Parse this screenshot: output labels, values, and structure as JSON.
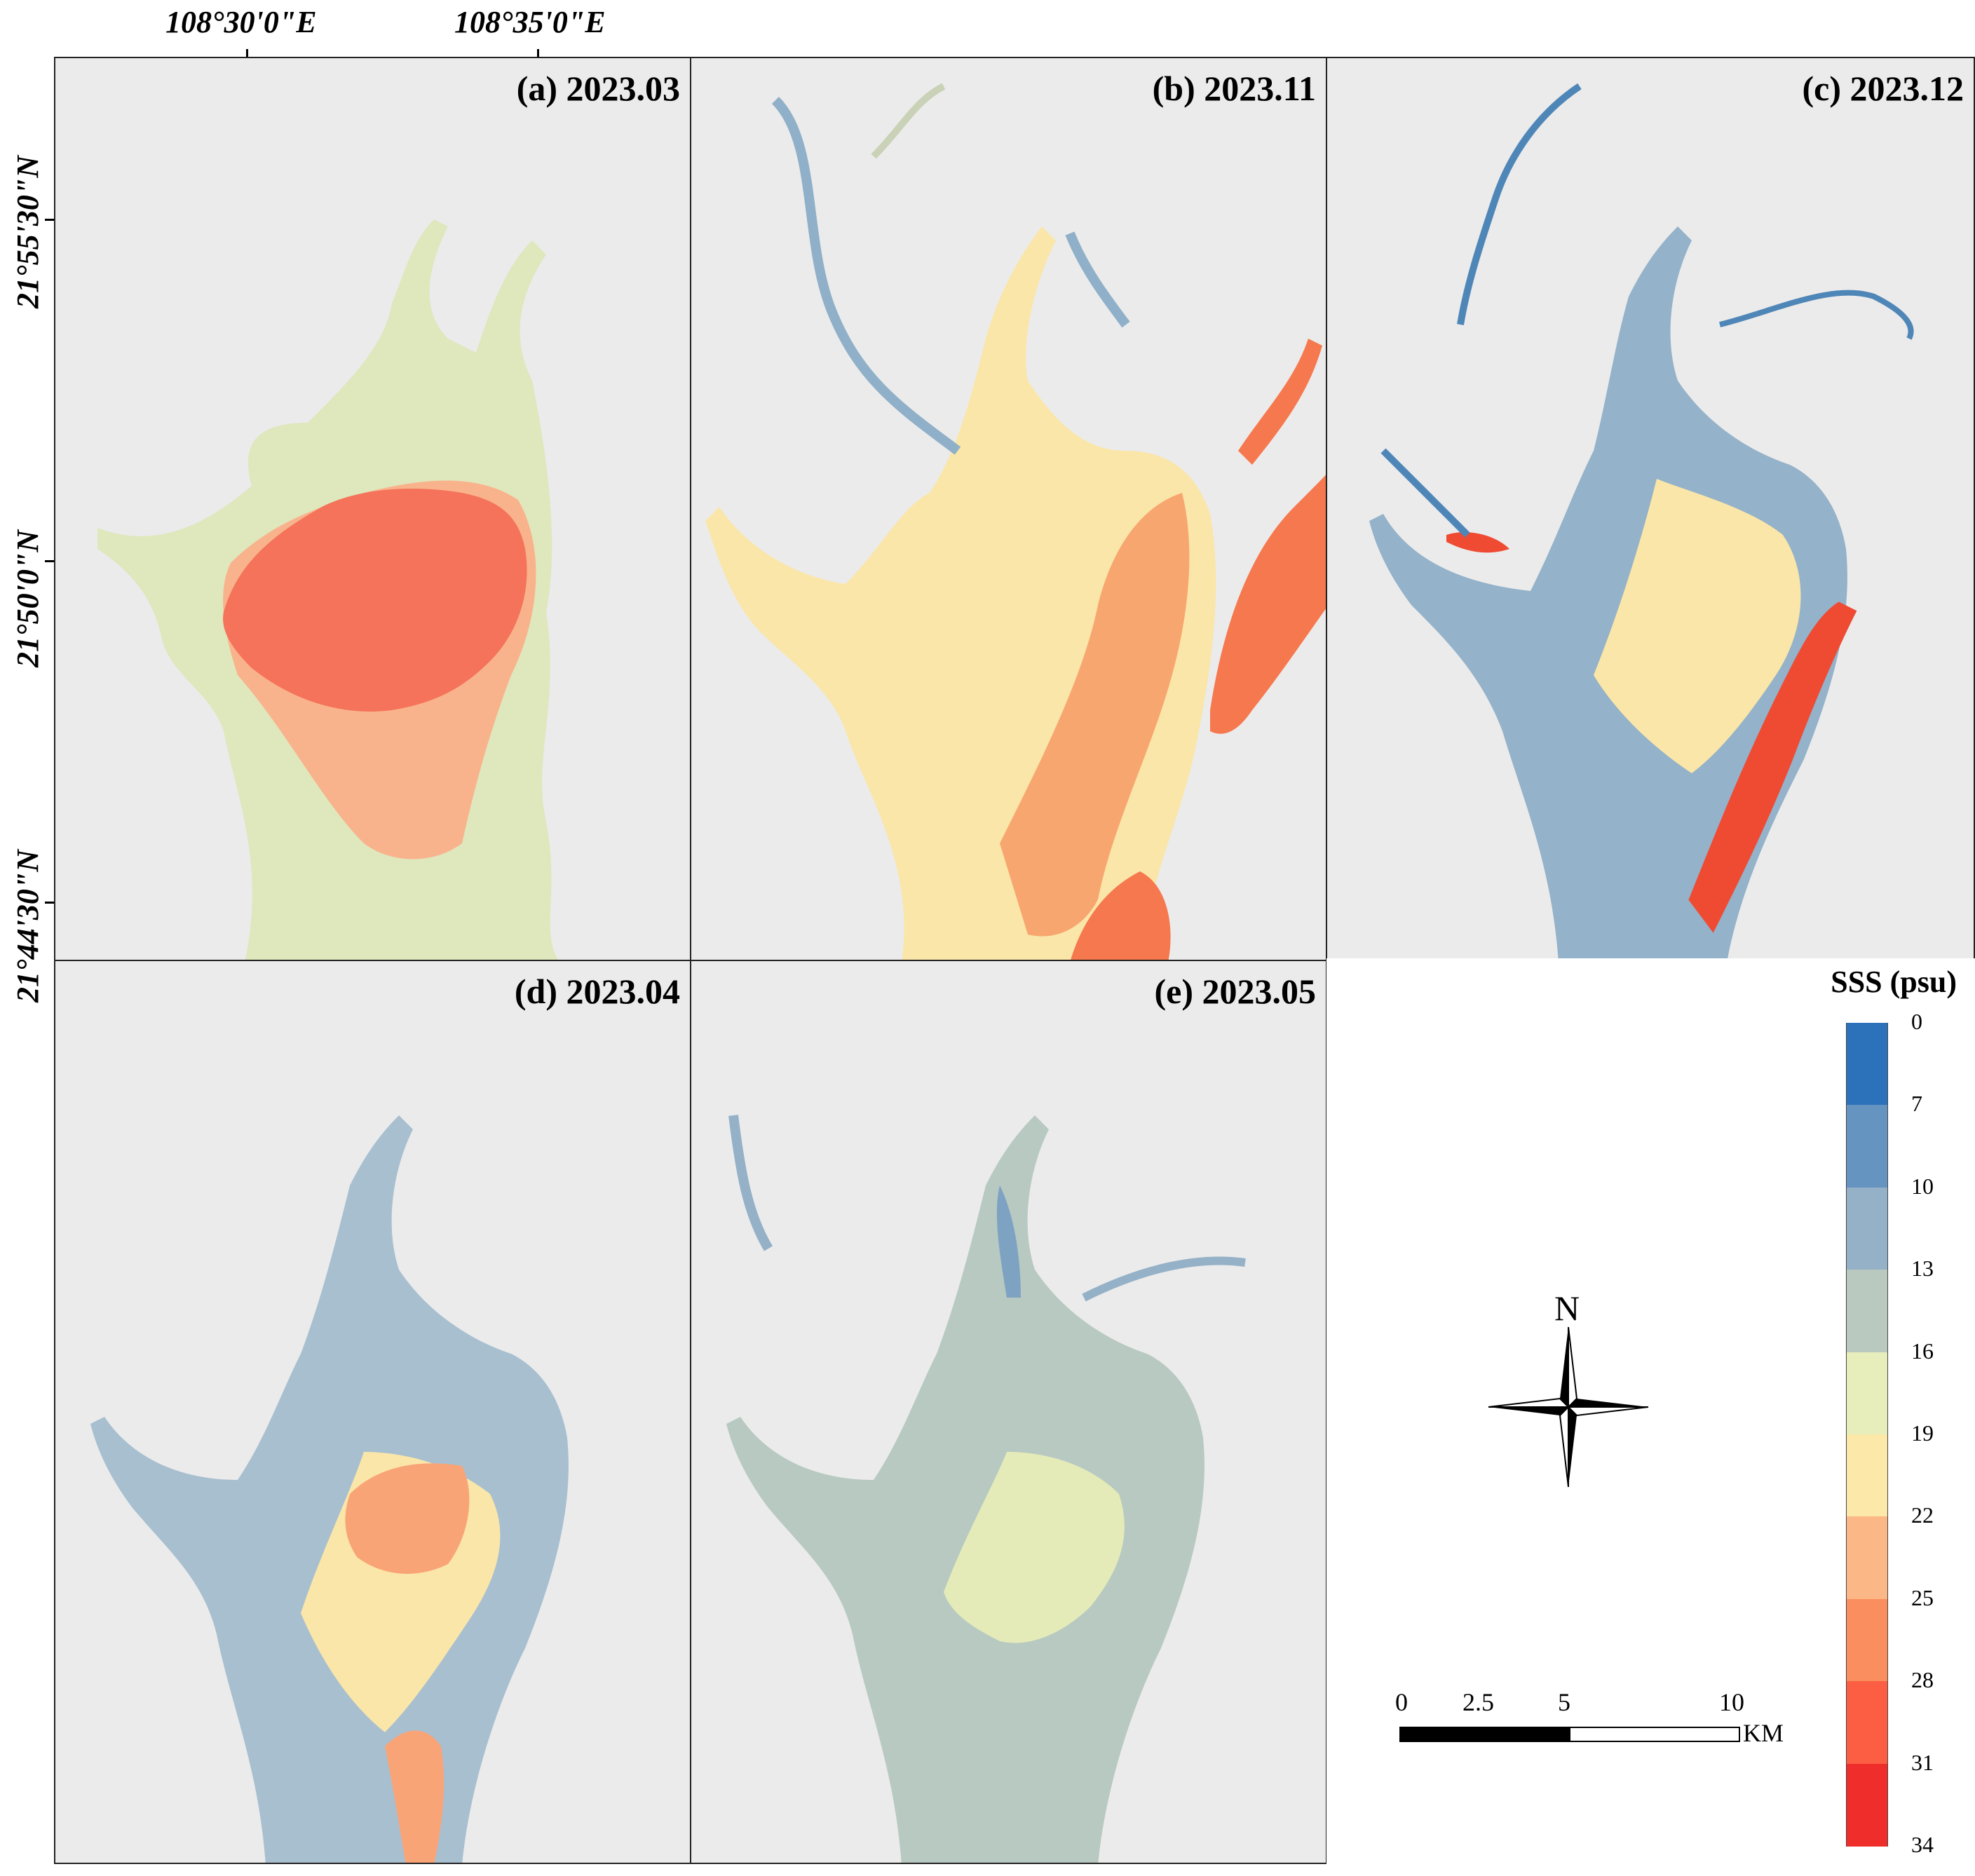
{
  "axes": {
    "lon_labels": [
      "108°30'0\"E",
      "108°35'0\"E"
    ],
    "lat_labels": [
      "21°55'30\"N",
      "21°50'0\"N",
      "21°44'30\"N"
    ]
  },
  "panels": [
    {
      "id": "a",
      "title": "(a) 2023.03",
      "base": "#dfe7bd",
      "core": "#f4735a",
      "mid": "#f9b38c"
    },
    {
      "id": "b",
      "title": "(b) 2023.11",
      "base": "#fae6a8",
      "core": "#f6784e",
      "mid": "#8fb0c8"
    },
    {
      "id": "c",
      "title": "(c) 2023.12",
      "base": "#94b2c9",
      "core": "#ef4a32",
      "mid": "#fae6a8"
    },
    {
      "id": "d",
      "title": "(d) 2023.04",
      "base": "#a8bfd0",
      "core": "#f9a477",
      "mid": "#fae6a8"
    },
    {
      "id": "e",
      "title": "(e) 2023.05",
      "base": "#b7c9c1",
      "core": "#7ea3c2",
      "mid": "#e4ebb8"
    }
  ],
  "legend": {
    "title": "SSS (psu)",
    "labels": [
      "0",
      "7",
      "10",
      "13",
      "16",
      "19",
      "22",
      "25",
      "28",
      "31",
      "34"
    ],
    "colors": [
      "#2b72ba",
      "#6694c1",
      "#94b1c7",
      "#bac9bf",
      "#e7edbb",
      "#fce8a9",
      "#fbb886",
      "#fb8e5e",
      "#fb5e42",
      "#ef2d2a"
    ]
  },
  "north_arrow": {
    "label": "N"
  },
  "scale_bar": {
    "ticks": [
      "0",
      "2.5",
      "5",
      "10"
    ],
    "unit": "KM"
  }
}
